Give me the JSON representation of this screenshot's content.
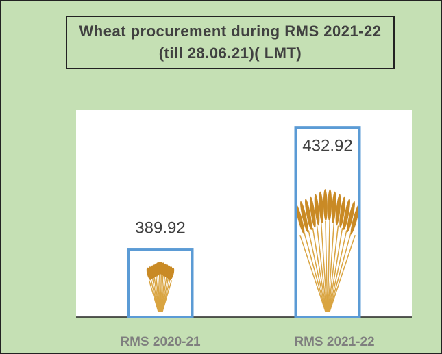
{
  "chart_data": {
    "type": "bar",
    "title": "Wheat procurement during RMS 2021-22 (till 28.06.21)( LMT)",
    "categories": [
      "RMS 2020-21",
      "RMS 2021-22"
    ],
    "values": [
      389.92,
      432.92
    ],
    "color": "#5b9bd5",
    "ylim": [
      366,
      439
    ]
  }
}
